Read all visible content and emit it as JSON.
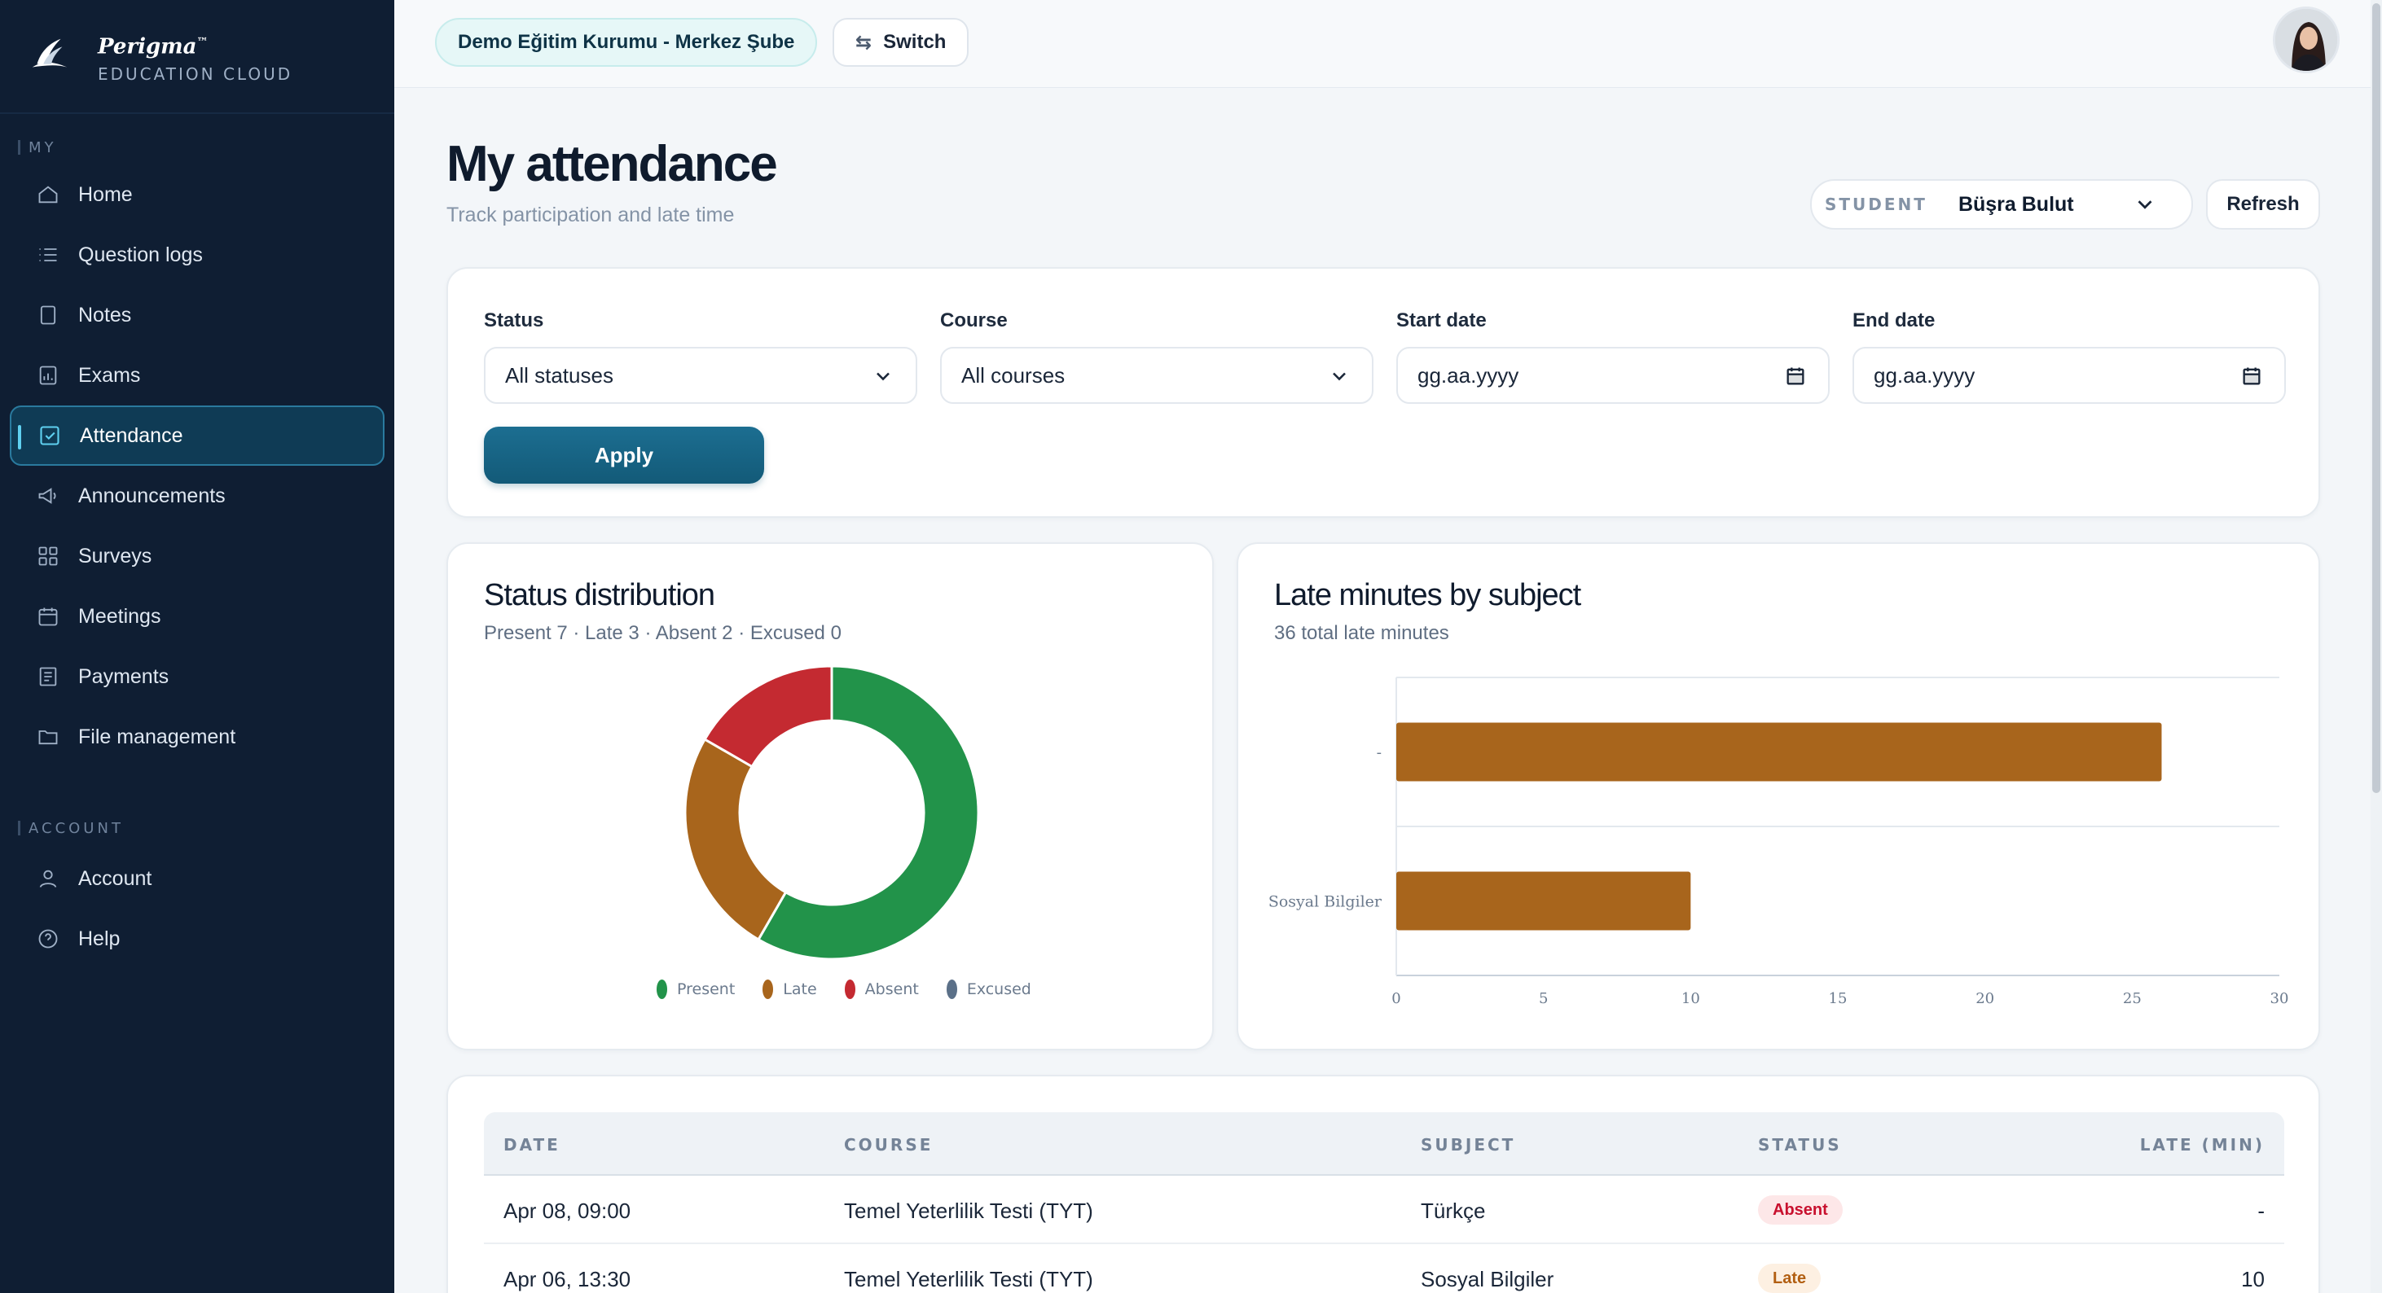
{
  "brand": {
    "name": "Perigma",
    "tm": "™",
    "subtitle": "EDUCATION CLOUD"
  },
  "sidebar": {
    "section_my": "MY",
    "section_account": "ACCOUNT",
    "items": [
      {
        "label": "Home",
        "icon": "home-icon"
      },
      {
        "label": "Question logs",
        "icon": "list-icon"
      },
      {
        "label": "Notes",
        "icon": "note-icon"
      },
      {
        "label": "Exams",
        "icon": "exam-icon"
      },
      {
        "label": "Attendance",
        "icon": "check-square-icon",
        "active": true
      },
      {
        "label": "Announcements",
        "icon": "megaphone-icon"
      },
      {
        "label": "Surveys",
        "icon": "grid-icon"
      },
      {
        "label": "Meetings",
        "icon": "calendar-icon"
      },
      {
        "label": "Payments",
        "icon": "receipt-icon"
      },
      {
        "label": "File management",
        "icon": "folder-icon"
      }
    ],
    "account_items": [
      {
        "label": "Account",
        "icon": "user-icon"
      },
      {
        "label": "Help",
        "icon": "help-icon"
      }
    ]
  },
  "topbar": {
    "organization": "Demo Eğitim Kurumu - Merkez Şube",
    "switch_label": "Switch"
  },
  "page": {
    "title": "My attendance",
    "subtitle": "Track participation and late time",
    "student_label": "STUDENT",
    "student_value": "Büşra Bulut",
    "refresh_label": "Refresh"
  },
  "filters": {
    "status_label": "Status",
    "status_value": "All statuses",
    "course_label": "Course",
    "course_value": "All courses",
    "start_label": "Start date",
    "start_value": "gg.aa.yyyy",
    "end_label": "End date",
    "end_value": "gg.aa.yyyy",
    "apply_label": "Apply"
  },
  "distribution": {
    "title": "Status distribution",
    "summary": "Present 7 · Late 3 · Absent 2 · Excused 0"
  },
  "late_chart": {
    "title": "Late minutes by subject",
    "summary": "36 total late minutes"
  },
  "chart_data": [
    {
      "type": "pie",
      "title": "Status distribution",
      "categories": [
        "Present",
        "Late",
        "Absent",
        "Excused"
      ],
      "values": [
        7,
        3,
        2,
        0
      ],
      "colors": [
        "#22934a",
        "#a8651c",
        "#c42a31",
        "#5b7088"
      ],
      "legend": "bottom"
    },
    {
      "type": "bar",
      "orientation": "horizontal",
      "title": "Late minutes by subject",
      "categories": [
        "-",
        "Sosyal Bilgiler"
      ],
      "values": [
        26,
        10
      ],
      "xlim": [
        0,
        30
      ],
      "xticks": [
        0,
        5,
        10,
        15,
        20,
        25,
        30
      ],
      "color": "#a8651c",
      "grid": true
    }
  ],
  "table": {
    "headers": [
      "DATE",
      "COURSE",
      "SUBJECT",
      "STATUS",
      "LATE (MIN)"
    ],
    "rows": [
      {
        "date": "Apr 08, 09:00",
        "course": "Temel Yeterlilik Testi (TYT)",
        "subject": "Türkçe",
        "status": "Absent",
        "late": "-"
      },
      {
        "date": "Apr 06, 13:30",
        "course": "Temel Yeterlilik Testi (TYT)",
        "subject": "Sosyal Bilgiler",
        "status": "Late",
        "late": "10"
      }
    ]
  }
}
